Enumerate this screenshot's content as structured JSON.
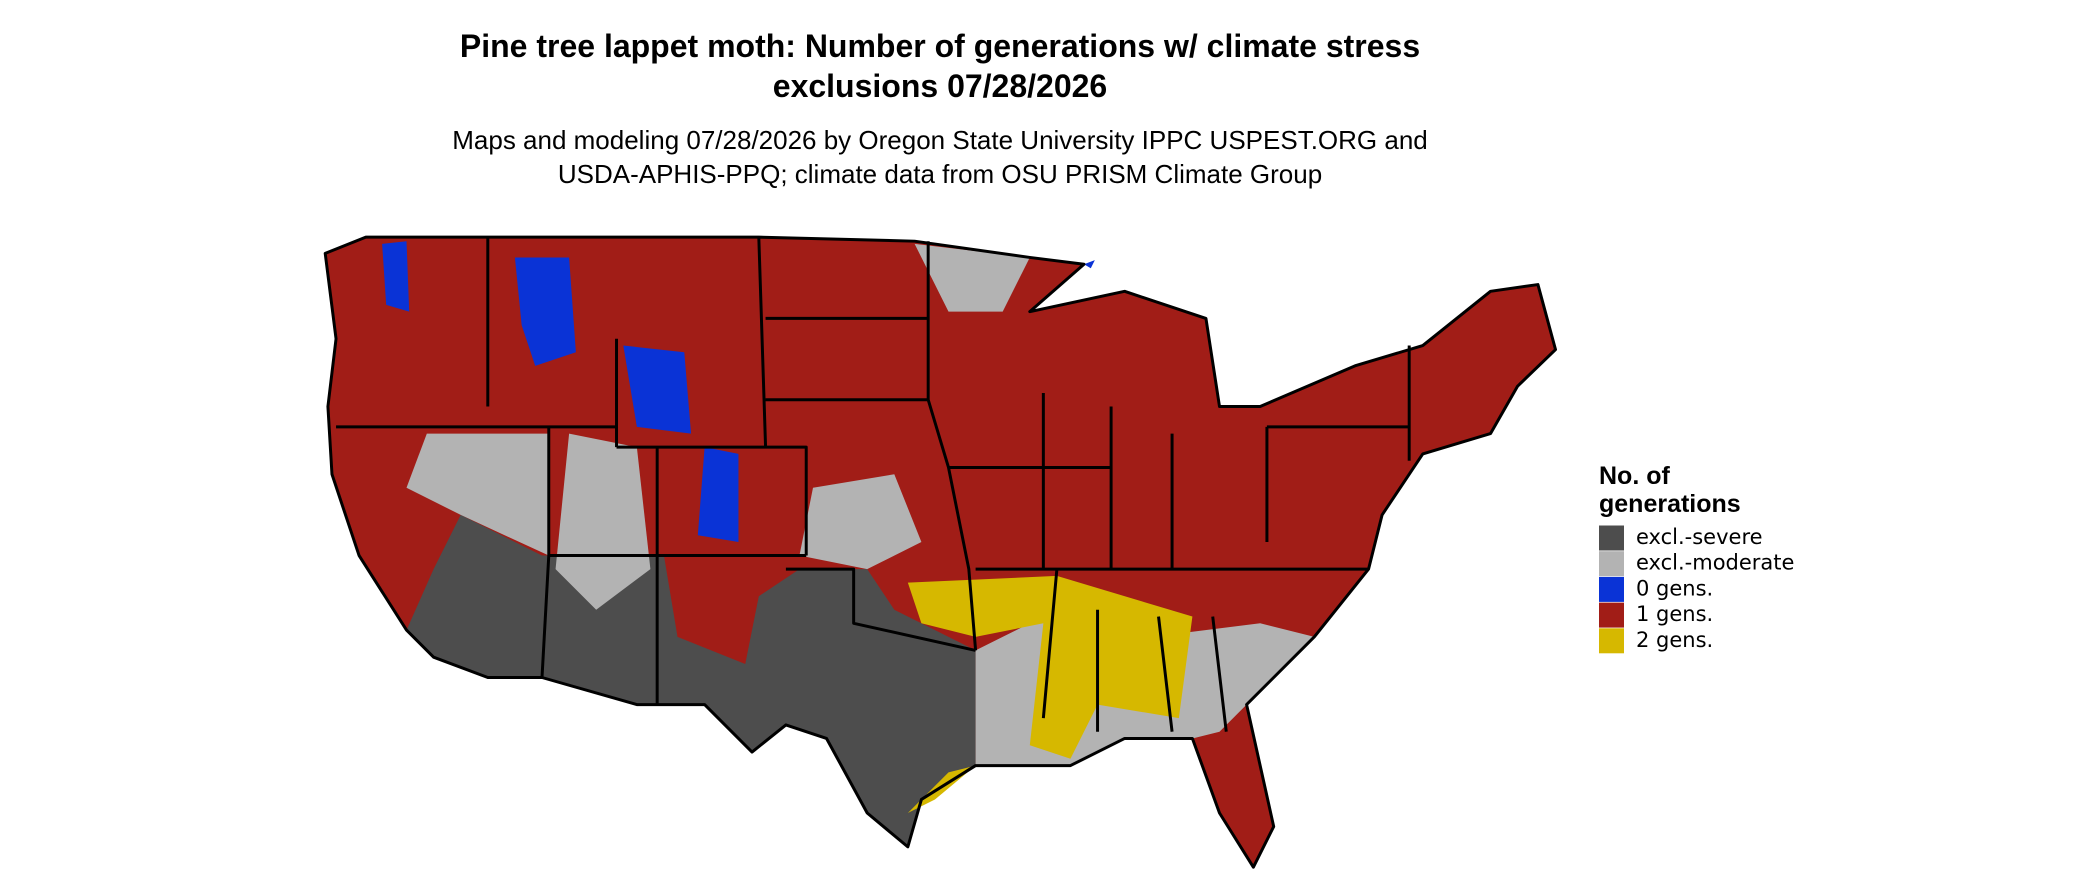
{
  "title": [
    "Pine tree lappet moth: Number of generations w/ climate stress",
    "exclusions 07/28/2026"
  ],
  "subtitle": [
    "Maps and modeling 07/28/2026 by Oregon State University IPPC USPEST.ORG and",
    "USDA-APHIS-PPQ; climate data from OSU PRISM Climate Group"
  ],
  "legend": {
    "title": [
      "No. of",
      "generations"
    ],
    "items": [
      {
        "label": "excl.-severe",
        "color": "#4d4d4d"
      },
      {
        "label": "excl.-moderate",
        "color": "#b3b3b3"
      },
      {
        "label": "0 gens.",
        "color": "#0a33d6"
      },
      {
        "label": "1 gens.",
        "color": "#a11d17"
      },
      {
        "label": "2 gens.",
        "color": "#d6b800"
      }
    ]
  }
}
